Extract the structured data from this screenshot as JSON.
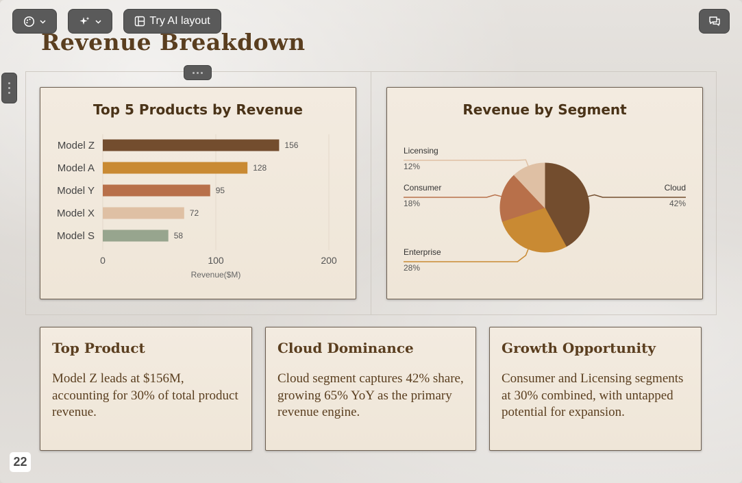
{
  "toolbar": {
    "ai_layout_label": "Try AI layout"
  },
  "slide": {
    "title": "Revenue Breakdown",
    "page_number": "22"
  },
  "charts": {
    "bar_title": "Top 5 Products by Revenue",
    "pie_title": "Revenue by Segment"
  },
  "chart_data": [
    {
      "type": "bar",
      "orientation": "horizontal",
      "title": "Top 5 Products by Revenue",
      "xlabel": "Revenue($M)",
      "ylabel": "",
      "categories": [
        "Model Z",
        "Model A",
        "Model Y",
        "Model X",
        "Model S"
      ],
      "values": [
        156,
        128,
        95,
        72,
        58
      ],
      "colors": [
        "#734d2e",
        "#c98a33",
        "#b8704a",
        "#dfc0a4",
        "#97a58e"
      ],
      "xlim": [
        0,
        200
      ],
      "xticks": [
        0,
        100,
        200
      ],
      "grid": true
    },
    {
      "type": "pie",
      "title": "Revenue by Segment",
      "slices": [
        {
          "label": "Cloud",
          "value": 42,
          "pct": "42%",
          "color": "#734d2e"
        },
        {
          "label": "Enterprise",
          "value": 28,
          "pct": "28%",
          "color": "#c98a33"
        },
        {
          "label": "Consumer",
          "value": 18,
          "pct": "18%",
          "color": "#b8704a"
        },
        {
          "label": "Licensing",
          "value": 12,
          "pct": "12%",
          "color": "#dfc0a4"
        }
      ]
    }
  ],
  "insights": [
    {
      "title": "Top Product",
      "text": "Model Z leads at $156M, accounting for 30% of total product revenue."
    },
    {
      "title": "Cloud Dominance",
      "text": "Cloud segment captures 42% share, growing 65% YoY as the primary revenue engine."
    },
    {
      "title": "Growth Opportunity",
      "text": "Consumer and Licensing segments at 30% combined, with untapped potential for expansion."
    }
  ]
}
